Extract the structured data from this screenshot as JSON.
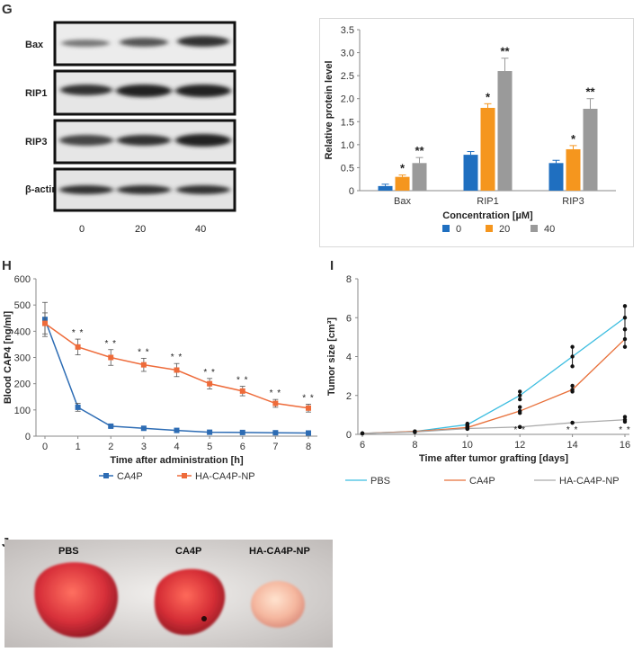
{
  "panels": {
    "g": "G",
    "h": "H",
    "i": "I",
    "j": "J"
  },
  "western_blot": {
    "rows": [
      "Bax",
      "RIP1",
      "RIP3",
      "β-actin"
    ],
    "concentrations": [
      "0",
      "20",
      "40"
    ]
  },
  "chart_data": [
    {
      "id": "G",
      "type": "bar",
      "title": "",
      "ylabel": "Relative protein level",
      "xlabel": "Concentration [µM]",
      "ylim": [
        0,
        3.5
      ],
      "yticks": [
        "0",
        "0.5",
        "1.0",
        "1.5",
        "2.0",
        "2.5",
        "3.0",
        "3.5"
      ],
      "categories": [
        "Bax",
        "RIP1",
        "RIP3"
      ],
      "legend_position": "bottom",
      "series": [
        {
          "name": "0",
          "color": "#1f6fc0",
          "values": [
            0.1,
            0.78,
            0.6
          ],
          "errors": [
            0.04,
            0.07,
            0.06
          ],
          "annotations": [
            "",
            "",
            ""
          ]
        },
        {
          "name": "20",
          "color": "#f5961e",
          "values": [
            0.3,
            1.8,
            0.9
          ],
          "errors": [
            0.04,
            0.09,
            0.08
          ],
          "annotations": [
            "*",
            "*",
            "*"
          ]
        },
        {
          "name": "40",
          "color": "#9a9a9a",
          "values": [
            0.6,
            2.6,
            1.78
          ],
          "errors": [
            0.12,
            0.28,
            0.22
          ],
          "annotations": [
            "**",
            "**",
            "**"
          ]
        }
      ]
    },
    {
      "id": "H",
      "type": "line",
      "ylabel": "Blood CAP4 [ng/ml]",
      "xlabel": "Time after administration [h]",
      "xlim": [
        0,
        8
      ],
      "ylim": [
        0,
        600
      ],
      "xticks": [
        "0",
        "1",
        "2",
        "3",
        "4",
        "5",
        "6",
        "7",
        "8"
      ],
      "yticks": [
        "0",
        "100",
        "200",
        "300",
        "400",
        "500",
        "600"
      ],
      "x": [
        0,
        1,
        2,
        3,
        4,
        5,
        6,
        7,
        8
      ],
      "legend_position": "bottom",
      "series": [
        {
          "name": "CA4P",
          "color": "#2d6cb4",
          "marker": "square",
          "values": [
            445,
            110,
            38,
            30,
            22,
            15,
            14,
            13,
            12
          ],
          "errors": [
            65,
            15,
            4,
            4,
            3,
            2,
            2,
            2,
            2
          ],
          "annotations": [
            "",
            "",
            "",
            "",
            "",
            "",
            "",
            "",
            ""
          ]
        },
        {
          "name": "HA-CA4P-NP",
          "color": "#ee6b3a",
          "marker": "square",
          "values": [
            430,
            340,
            300,
            272,
            252,
            200,
            172,
            125,
            107
          ],
          "errors": [
            40,
            30,
            30,
            25,
            25,
            20,
            18,
            15,
            15
          ],
          "annotations": [
            "",
            "**",
            "**",
            "**",
            "**",
            "**",
            "**",
            "**",
            "**"
          ]
        }
      ]
    },
    {
      "id": "I",
      "type": "line",
      "ylabel": "Tumor size [cm³]",
      "xlabel": "Time after tumor grafting [days]",
      "xlim": [
        6,
        16
      ],
      "ylim": [
        0,
        8
      ],
      "xticks": [
        "6",
        "8",
        "10",
        "12",
        "14",
        "16"
      ],
      "yticks": [
        "0",
        "2",
        "4",
        "6",
        "8"
      ],
      "x": [
        6,
        8,
        10,
        12,
        14,
        16
      ],
      "legend_position": "bottom",
      "series": [
        {
          "name": "PBS",
          "color": "#3cbde0",
          "values": [
            0.05,
            0.15,
            0.5,
            2.0,
            4.0,
            6.0
          ],
          "range": [
            [
              0.05,
              0.05
            ],
            [
              0.15,
              0.15
            ],
            [
              0.45,
              0.55
            ],
            [
              1.8,
              2.2
            ],
            [
              3.5,
              4.5
            ],
            [
              5.4,
              6.6
            ]
          ]
        },
        {
          "name": "CA4P",
          "color": "#e8703a",
          "values": [
            0.05,
            0.15,
            0.35,
            1.2,
            2.3,
            4.9
          ],
          "range": [
            [
              0.05,
              0.05
            ],
            [
              0.15,
              0.15
            ],
            [
              0.3,
              0.4
            ],
            [
              1.1,
              1.4
            ],
            [
              2.2,
              2.5
            ],
            [
              4.5,
              5.4
            ]
          ]
        },
        {
          "name": "HA-CA4P-NP",
          "color": "#aaaaaa",
          "values": [
            0.05,
            0.12,
            0.3,
            0.38,
            0.6,
            0.75
          ],
          "range": [
            [
              0.05,
              0.05
            ],
            [
              0.12,
              0.12
            ],
            [
              0.28,
              0.32
            ],
            [
              0.38,
              0.38
            ],
            [
              0.6,
              0.6
            ],
            [
              0.65,
              0.9
            ]
          ]
        }
      ],
      "annotations": [
        {
          "x": 12,
          "text": "**"
        },
        {
          "x": 14,
          "text": "**"
        },
        {
          "x": 16,
          "text": "**"
        }
      ]
    }
  ],
  "photo": {
    "labels": [
      "PBS",
      "CA4P",
      "HA-CA4P-NP"
    ]
  }
}
